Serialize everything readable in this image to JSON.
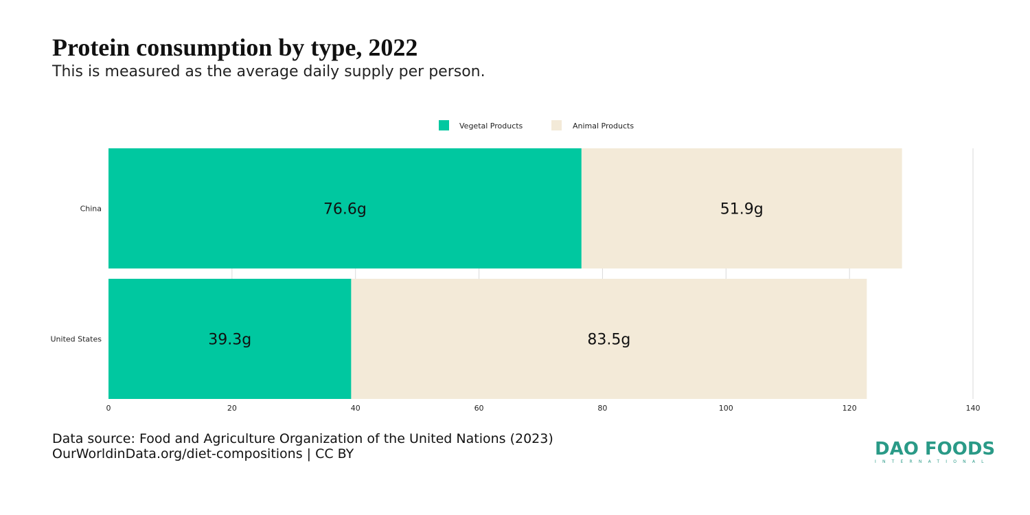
{
  "header": {
    "title": "Protein consumption by type, 2022",
    "subtitle": "This is measured as the average daily supply per person."
  },
  "footer": {
    "source_line1": "Data source: Food and Agriculture Organization of the United Nations (2023)",
    "source_line2": "OurWorldinData.org/diet-compositions | CC BY"
  },
  "logo": {
    "main": "DAO FOODS",
    "sub": "INTERNATIONAL"
  },
  "chart_data": {
    "type": "bar",
    "orientation": "horizontal",
    "stacked": true,
    "categories": [
      "China",
      "United States"
    ],
    "series": [
      {
        "name": "Vegetal Products",
        "values": [
          76.6,
          39.3
        ],
        "labels": [
          "76.6g",
          "39.3g"
        ],
        "color": "#00c8a0"
      },
      {
        "name": "Animal Products",
        "values": [
          51.9,
          83.5
        ],
        "labels": [
          "51.9g",
          "83.5g"
        ],
        "color": "#f3ead8"
      }
    ],
    "xlim": [
      0,
      140
    ],
    "xticks": [
      0,
      20,
      40,
      60,
      80,
      100,
      120,
      140
    ],
    "grid": true,
    "legend": "top-center"
  }
}
